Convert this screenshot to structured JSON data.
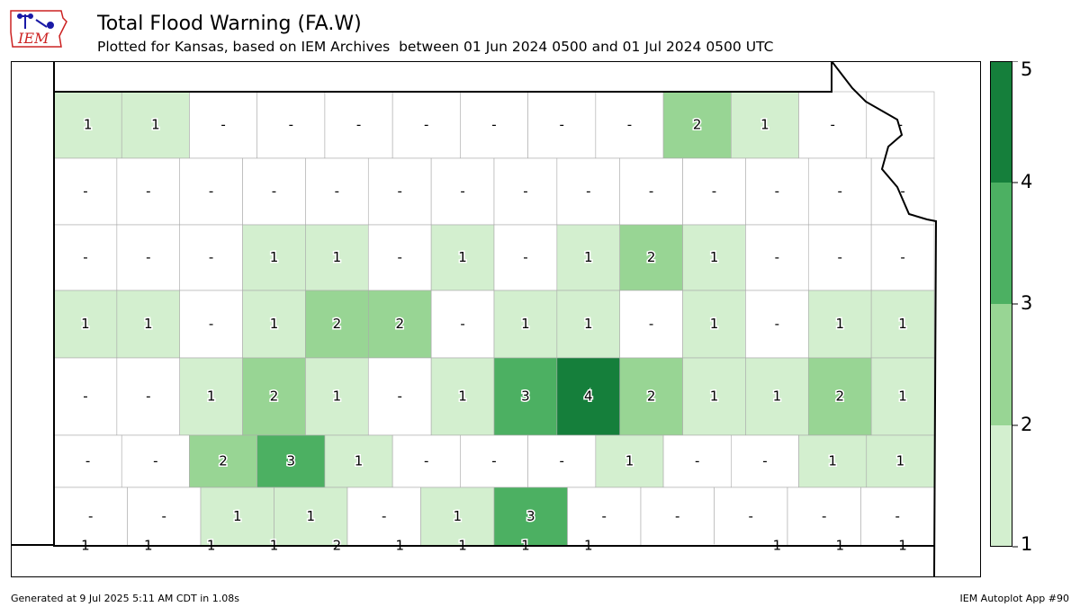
{
  "header": {
    "title": "Total Flood Warning (FA.W)",
    "subtitle": "Plotted for Kansas, based on IEM Archives  between 01 Jun 2024 0500 and 01 Jul 2024 0500 UTC"
  },
  "logo": {
    "text": "IEM",
    "color": "#1a1aa6",
    "accent": "#cc2222"
  },
  "legend": {
    "ticks": [
      "1",
      "2",
      "3",
      "4",
      "5"
    ],
    "bins": [
      {
        "label": "1",
        "color": "#d3efcf"
      },
      {
        "label": "2",
        "color": "#98d594"
      },
      {
        "label": "3",
        "color": "#4cb062"
      },
      {
        "label": "4",
        "color": "#157f3b"
      }
    ]
  },
  "colors": {
    "no_data": "#ffffff",
    "county_border": "#aaaaaa",
    "state_border": "#000000"
  },
  "counties": [
    {
      "row": 0,
      "values": [
        "1",
        "1",
        "-",
        "-",
        "-",
        "-",
        "-",
        "-",
        "-",
        "2",
        "1",
        "-",
        "-"
      ]
    },
    {
      "row": 1,
      "values": [
        "-",
        "-",
        "-",
        "-",
        "-",
        "-",
        "-",
        "-",
        "-",
        "-",
        "-",
        "-",
        "-",
        "-"
      ]
    },
    {
      "row": 2,
      "values": [
        "-",
        "-",
        "-",
        "1",
        "1",
        "-",
        "1",
        "-",
        "1",
        "2",
        "1",
        "-",
        "-",
        "-"
      ]
    },
    {
      "row": 3,
      "values": [
        "1",
        "1",
        "-",
        "1",
        "2",
        "2",
        "-",
        "1",
        "1",
        "-",
        "1",
        "-",
        "1",
        "1"
      ]
    },
    {
      "row": 4,
      "values": [
        "-",
        "-",
        "1",
        "2",
        "1",
        "-",
        "1",
        "3",
        "4",
        "2",
        "1",
        "1",
        "2",
        "1"
      ]
    },
    {
      "row": 5,
      "values": [
        "-",
        "-",
        "2",
        "3",
        "1",
        "-",
        "-",
        "-",
        "1",
        "-",
        "-",
        "1",
        "1"
      ]
    },
    {
      "row": 6,
      "values": [
        "-",
        "-",
        "1",
        "1",
        "-",
        "1",
        "3",
        "-",
        "-",
        "-",
        "-",
        "-"
      ]
    },
    {
      "row": 7,
      "values": [
        "1",
        "1",
        "1",
        "1",
        "2",
        "1",
        "1",
        "1",
        "1",
        "-",
        "-",
        "1",
        "1",
        "1"
      ]
    }
  ],
  "footer": {
    "generated": "Generated at 9 Jul 2025 5:11 AM CDT in 1.08s",
    "app": "IEM Autoplot App #90"
  }
}
